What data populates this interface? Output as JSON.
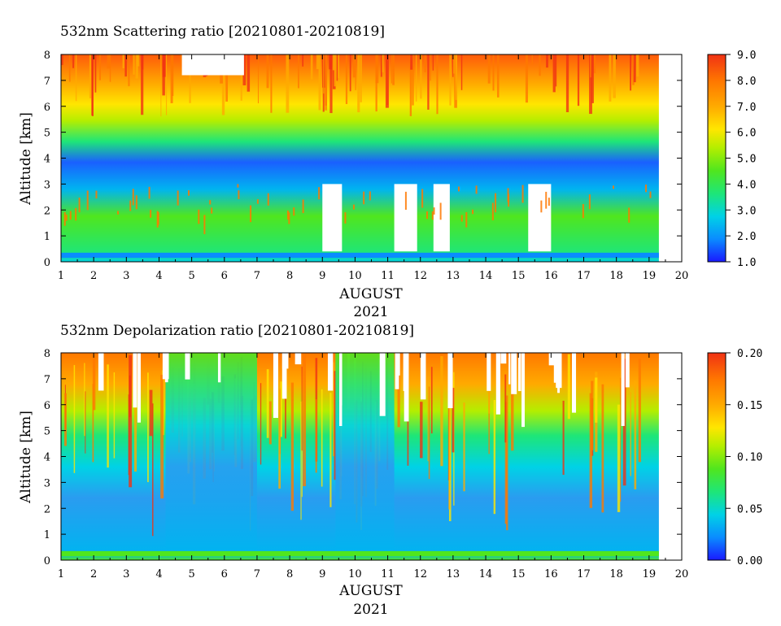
{
  "chart_data": [
    {
      "type": "heatmap",
      "title": "532nm Scattering ratio [20210801-20210819]",
      "xlabel": "AUGUST",
      "xlabel2": "2021",
      "ylabel": "Altitude [km]",
      "x_ticks": [
        "1",
        "2",
        "3",
        "4",
        "5",
        "6",
        "7",
        "8",
        "9",
        "10",
        "11",
        "12",
        "13",
        "14",
        "15",
        "16",
        "17",
        "18",
        "19",
        "20"
      ],
      "x_range": [
        1,
        20
      ],
      "data_x_end": 19.3,
      "y_ticks": [
        "0",
        "1",
        "2",
        "3",
        "4",
        "5",
        "6",
        "7",
        "8"
      ],
      "y_range": [
        0,
        8
      ],
      "colorbar_ticks": [
        "1.0",
        "2.0",
        "3.0",
        "4.0",
        "5.0",
        "6.0",
        "7.0",
        "8.0",
        "9.0"
      ],
      "colorbar_range": [
        1.0,
        9.0
      ],
      "colorscale": [
        "#1a1aff",
        "#0a8cff",
        "#00d2e6",
        "#1ee678",
        "#50e61e",
        "#b4ee00",
        "#ffe600",
        "#ffaa00",
        "#ff7800",
        "#f03214"
      ],
      "clear_sky_days": [
        [
          4.7,
          6.6
        ]
      ],
      "cloud_gaps_days": [
        [
          9.0,
          9.6
        ],
        [
          11.2,
          11.9
        ],
        [
          12.4,
          12.9
        ],
        [
          15.3,
          16.0
        ]
      ]
    },
    {
      "type": "heatmap",
      "title": "532nm Depolarization ratio [20210801-20210819]",
      "xlabel": "AUGUST",
      "xlabel2": "2021",
      "ylabel": "Altitude [km]",
      "x_ticks": [
        "1",
        "2",
        "3",
        "4",
        "5",
        "6",
        "7",
        "8",
        "9",
        "10",
        "11",
        "12",
        "13",
        "14",
        "15",
        "16",
        "17",
        "18",
        "19",
        "20"
      ],
      "x_range": [
        1,
        20
      ],
      "data_x_end": 19.3,
      "y_ticks": [
        "0",
        "1",
        "2",
        "3",
        "4",
        "5",
        "6",
        "7",
        "8"
      ],
      "y_range": [
        0,
        8
      ],
      "colorbar_ticks": [
        "0.00",
        "0.05",
        "0.10",
        "0.15",
        "0.20"
      ],
      "colorbar_range": [
        0.0,
        0.2
      ],
      "colorscale": [
        "#1a1aff",
        "#0a8cff",
        "#00d2e6",
        "#1ee678",
        "#50e61e",
        "#b4ee00",
        "#ffe600",
        "#ffaa00",
        "#ff7800",
        "#f03214"
      ],
      "low_depol_days": [
        [
          4.2,
          7.0
        ],
        [
          9.4,
          11.2
        ]
      ]
    }
  ]
}
